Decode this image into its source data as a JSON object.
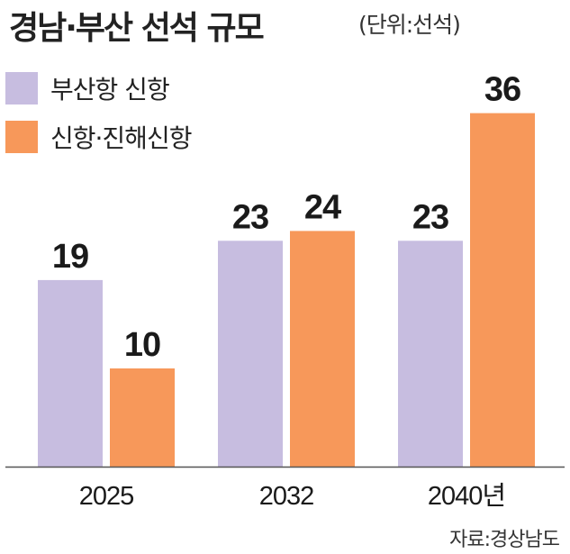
{
  "title": "경남·부산 선석 규모",
  "unit": "(단위:선석)",
  "source": "자료:경상남도",
  "colors": {
    "busan": "#c7bde0",
    "jinhae": "#f7985a"
  },
  "legend": [
    {
      "label": "부산항 신항",
      "color": "#c7bde0"
    },
    {
      "label": "신항·진해신항",
      "color": "#f7985a"
    }
  ],
  "chart_data": {
    "type": "bar",
    "categories": [
      "2025",
      "2032",
      "2040년"
    ],
    "series": [
      {
        "name": "부산항 신항",
        "values": [
          19,
          23,
          23
        ]
      },
      {
        "name": "신항·진해신항",
        "values": [
          10,
          24,
          36
        ]
      }
    ],
    "title": "경남·부산 선석 규모",
    "unit": "(단위:선석)",
    "ylim": [
      0,
      40
    ],
    "grid": false,
    "legend_position": "top-left"
  }
}
